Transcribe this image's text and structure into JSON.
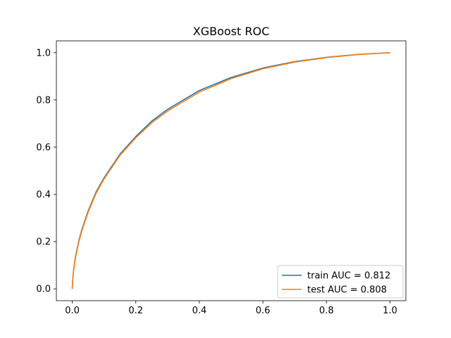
{
  "chart_data": {
    "type": "line",
    "title": "XGBoost ROC",
    "xlabel": "",
    "ylabel": "",
    "xlim": [
      -0.05,
      1.05
    ],
    "ylim": [
      -0.05,
      1.05
    ],
    "xticks": [
      "0.0",
      "0.2",
      "0.4",
      "0.6",
      "0.8",
      "1.0"
    ],
    "yticks": [
      "0.0",
      "0.2",
      "0.4",
      "0.6",
      "0.8",
      "1.0"
    ],
    "grid": false,
    "legend_position": "lower-right",
    "series": [
      {
        "name": "train AUC = 0.812",
        "color": "#1f77b4",
        "x": [
          0,
          0.002,
          0.005,
          0.01,
          0.02,
          0.03,
          0.05,
          0.075,
          0.1,
          0.15,
          0.2,
          0.25,
          0.3,
          0.4,
          0.5,
          0.6,
          0.7,
          0.8,
          0.9,
          1.0
        ],
        "y": [
          0,
          0.05,
          0.09,
          0.135,
          0.2,
          0.25,
          0.33,
          0.41,
          0.47,
          0.57,
          0.645,
          0.71,
          0.76,
          0.84,
          0.895,
          0.935,
          0.962,
          0.98,
          0.993,
          1.0
        ]
      },
      {
        "name": "test AUC = 0.808",
        "color": "#ff7f0e",
        "x": [
          0,
          0.002,
          0.005,
          0.01,
          0.02,
          0.03,
          0.05,
          0.075,
          0.1,
          0.15,
          0.2,
          0.25,
          0.3,
          0.4,
          0.5,
          0.6,
          0.7,
          0.8,
          0.9,
          1.0
        ],
        "y": [
          0,
          0.048,
          0.087,
          0.13,
          0.195,
          0.245,
          0.325,
          0.405,
          0.465,
          0.565,
          0.64,
          0.703,
          0.753,
          0.833,
          0.89,
          0.932,
          0.96,
          0.979,
          0.992,
          1.0
        ]
      }
    ]
  }
}
